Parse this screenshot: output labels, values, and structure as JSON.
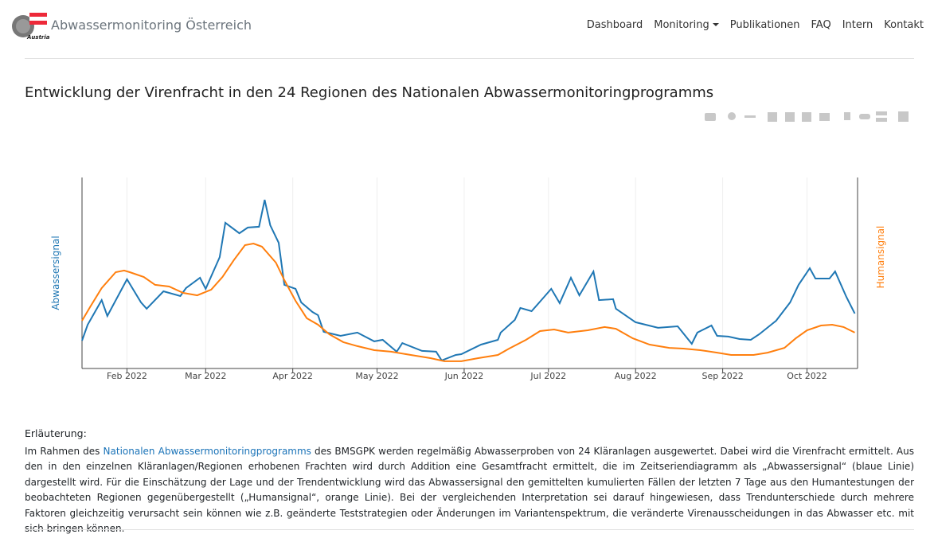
{
  "header": {
    "logo_text": "Austria",
    "brand": "Abwassermonitoring Österreich",
    "nav": [
      "Dashboard",
      "Monitoring",
      "Publikationen",
      "FAQ",
      "Intern",
      "Kontakt"
    ]
  },
  "chart_data": {
    "type": "line",
    "title": "Entwicklung der Virenfracht in den 24 Regionen des Nationalen Abwassermonitoringprogramms",
    "y_label": "Abwassersignal",
    "y2_label": "Humansignal",
    "xlim": [
      0,
      276
    ],
    "xticks": [
      {
        "value": 16,
        "label": "Feb 2022"
      },
      {
        "value": 44,
        "label": "Mar 2022"
      },
      {
        "value": 75,
        "label": "Apr 2022"
      },
      {
        "value": 105,
        "label": "May 2022"
      },
      {
        "value": 136,
        "label": "Jun 2022"
      },
      {
        "value": 166,
        "label": "Jul 2022"
      },
      {
        "value": 197,
        "label": "Aug 2022"
      },
      {
        "value": 228,
        "label": "Sep 2022"
      },
      {
        "value": 258,
        "label": "Oct 2022"
      }
    ],
    "ylim": [
      0,
      100
    ],
    "y2lim": [
      0,
      100
    ],
    "grid": true,
    "series": [
      {
        "color": "#1f77b4",
        "x": [
          0,
          2,
          7,
          9,
          16,
          21,
          23,
          29,
          35,
          37,
          42,
          44,
          49,
          51,
          56,
          59,
          63,
          65,
          67,
          70,
          72,
          76,
          78,
          82,
          84,
          86,
          92,
          98,
          104,
          107,
          112,
          114,
          121,
          126,
          128,
          133,
          135,
          142,
          148,
          149,
          154,
          156,
          160,
          163,
          167,
          170,
          174,
          177,
          182,
          184,
          189,
          190,
          197,
          205,
          212,
          217,
          219,
          224,
          226,
          230,
          234,
          238,
          241,
          246,
          247,
          252,
          255,
          259,
          261,
          266,
          268,
          272,
          275
        ],
        "values": [
          14.6,
          22.9,
          35.8,
          27.5,
          46.7,
          34.6,
          31.3,
          40.4,
          37.9,
          42.1,
          47.5,
          41.7,
          58.3,
          76.3,
          70.8,
          73.8,
          74.2,
          88.3,
          75.0,
          65.8,
          43.8,
          41.7,
          34.6,
          29.6,
          27.9,
          19.2,
          17.1,
          18.8,
          14.2,
          15.0,
          8.8,
          13.3,
          9.2,
          8.8,
          4.2,
          7.1,
          7.5,
          12.5,
          15.0,
          18.8,
          25.4,
          31.7,
          30.0,
          35.0,
          41.7,
          34.2,
          47.5,
          38.3,
          50.8,
          35.8,
          36.3,
          31.3,
          24.2,
          21.3,
          22.1,
          12.9,
          18.8,
          22.5,
          17.1,
          16.7,
          15.4,
          15.0,
          17.9,
          23.8,
          25.0,
          34.6,
          43.8,
          52.5,
          47.1,
          47.1,
          50.8,
          37.5,
          28.8
        ]
      },
      {
        "color": "#ff7f0e",
        "axis": "y2",
        "x": [
          0,
          3,
          7,
          12,
          15,
          17,
          22,
          26,
          31,
          36,
          41,
          46,
          50,
          54,
          58,
          61,
          64,
          69,
          72,
          76,
          80,
          84,
          88,
          93,
          98,
          104,
          110,
          117,
          124,
          129,
          135,
          141,
          148,
          152,
          158,
          163,
          168,
          173,
          180,
          186,
          190,
          196,
          202,
          209,
          214,
          220,
          226,
          231,
          239,
          244,
          250,
          254,
          258,
          263,
          267,
          271,
          275
        ],
        "values": [
          25.0,
          32.5,
          42.1,
          50.4,
          51.3,
          50.4,
          47.9,
          43.8,
          42.9,
          39.6,
          38.3,
          41.3,
          47.9,
          56.7,
          64.6,
          65.4,
          63.8,
          55.4,
          46.3,
          35.4,
          26.3,
          22.9,
          17.9,
          13.8,
          11.7,
          9.6,
          8.8,
          7.1,
          5.4,
          3.8,
          3.8,
          5.4,
          7.1,
          10.4,
          15.0,
          19.6,
          20.4,
          18.8,
          20.0,
          21.7,
          20.8,
          15.8,
          12.5,
          10.8,
          10.4,
          9.6,
          8.3,
          7.1,
          7.1,
          8.3,
          10.8,
          15.8,
          20.0,
          22.5,
          22.9,
          21.7,
          18.8
        ]
      }
    ]
  },
  "explanation": {
    "heading": "Erläuterung:",
    "text_before": "Im Rahmen des ",
    "link": "Nationalen Abwassermonitoringprogramms",
    "text_after": " des BMSGPK werden regelmäßig Abwasserproben von 24 Kläranlagen ausgewertet. Dabei wird die Virenfracht ermittelt. Aus den in den einzelnen Kläranlagen/Regionen erhobenen Frachten wird durch Addition eine Gesamtfracht ermittelt, die im Zeitseriendiagramm als „Abwassersignal“ (blaue Linie) dargestellt wird. Für die Einschätzung der Lage und der Trendentwicklung wird das Abwassersignal den gemittelten kumulierten Fällen der letzten 7 Tage aus den Humantestungen der beobachteten Regionen gegenübergestellt („Humansignal“, orange Linie). Bei der vergleichenden Interpretation sei darauf hingewiesen, dass Trendunterschiede durch mehrere Faktoren gleichzeitig verursacht sein können wie z.B. geänderte Teststrategien oder Änderungen im Variantenspektrum, die veränderte Virenausscheidungen in das Abwasser etc. mit sich bringen können."
  }
}
